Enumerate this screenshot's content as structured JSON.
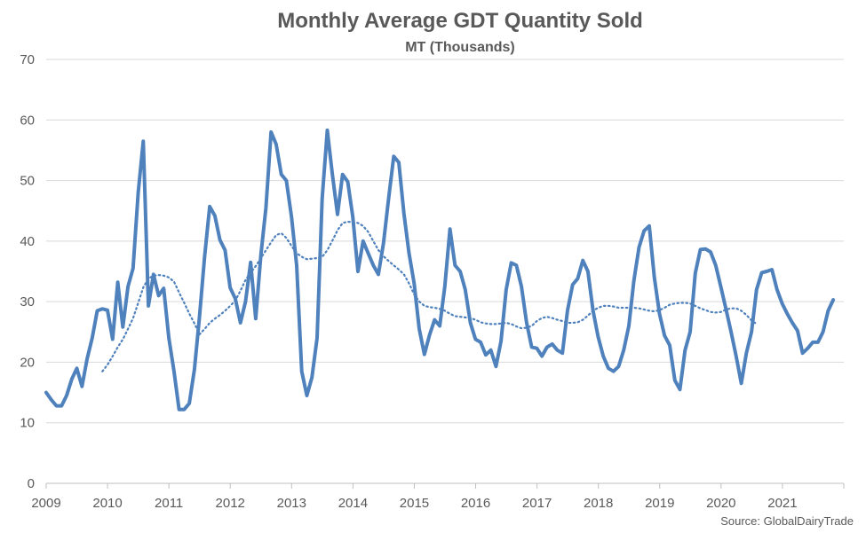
{
  "chart_data": {
    "type": "line",
    "title": "Monthly Average GDT Quantity Sold",
    "subtitle": "MT (Thousands)",
    "xlabel": "",
    "ylabel": "",
    "ylim": [
      0,
      70
    ],
    "y_ticks": [
      "0",
      "10",
      "20",
      "30",
      "40",
      "50",
      "60",
      "70"
    ],
    "x_ticks": [
      "2009",
      "2010",
      "2011",
      "2012",
      "2013",
      "2014",
      "2015",
      "2016",
      "2017",
      "2018",
      "2019",
      "2020",
      "2021"
    ],
    "grid": true,
    "legend": "none",
    "source": "Source: GlobalDairyTrade",
    "colors": {
      "series": "#4f81bd",
      "grid": "#d9d9d9",
      "text": "#595959"
    },
    "series": [
      {
        "style": "solid",
        "x_start": 2009.0,
        "x_step": 0.0833,
        "values": [
          15,
          13.8,
          12.8,
          12.8,
          14.5,
          17.2,
          19,
          16,
          20.5,
          24,
          28.5,
          28.8,
          28.6,
          23.8,
          33.2,
          25.8,
          32.5,
          35.5,
          48,
          56.5,
          29.3,
          34.5,
          31,
          32.2,
          24,
          18.5,
          12.2,
          12.2,
          13.2,
          18.8,
          27.5,
          37.5,
          45.7,
          44.2,
          40.2,
          38.5,
          32.3,
          30.5,
          26.5,
          30,
          36.5,
          27.2,
          37.7,
          45.5,
          58,
          56,
          51,
          50,
          44,
          36,
          18.5,
          14.5,
          17.5,
          24,
          47,
          58.3,
          51,
          44.4,
          51,
          49.8,
          44,
          35,
          40,
          38,
          36,
          34.5,
          39.7,
          47,
          54,
          53,
          44.5,
          38,
          33,
          25.5,
          21.3,
          24.5,
          27,
          26,
          32.5,
          42,
          36,
          35,
          32,
          26.5,
          23.8,
          23.3,
          21.2,
          22,
          19.3,
          23.5,
          32,
          36.4,
          36,
          32.5,
          26.5,
          22.5,
          22.3,
          21,
          22.5,
          23,
          22,
          21.5,
          28.5,
          32.8,
          33.8,
          36.8,
          35,
          28.5,
          24.2,
          21,
          19,
          18.5,
          19.3,
          22,
          26,
          33.5,
          39,
          41.7,
          42.5,
          34,
          28,
          24.4,
          22.8,
          17,
          15.5,
          22,
          25,
          34.7,
          38.6,
          38.7,
          38.2,
          36,
          32.5,
          28.8,
          25,
          21,
          16.5,
          21.5,
          25,
          32,
          34.8,
          35,
          35.3,
          32,
          29.7,
          28,
          26.5,
          25.2,
          21.5,
          22.3,
          23.3,
          23.3,
          25,
          28.5,
          30.3
        ]
      },
      {
        "style": "dotted",
        "x_start": 2009.917,
        "x_step": 0.0833,
        "values": [
          18.5,
          19.6,
          21,
          22.5,
          23.8,
          25.5,
          27.3,
          29.8,
          32.4,
          33.8,
          34.3,
          34.4,
          34.3,
          34,
          33.3,
          31.5,
          29.8,
          28,
          26.4,
          24.6,
          25.5,
          26.5,
          27.2,
          27.8,
          28.5,
          29.3,
          30.2,
          31.8,
          33.6,
          34.8,
          35.9,
          37.2,
          38.5,
          39.8,
          41,
          41.3,
          40.5,
          39.2,
          38,
          37.4,
          37,
          37.1,
          37.2,
          37.4,
          38.5,
          40.1,
          41.8,
          43,
          43.2,
          43.1,
          43,
          42.5,
          41.5,
          40,
          38.5,
          37.5,
          36.7,
          36,
          35.3,
          34.5,
          33,
          31.2,
          30,
          29.3,
          29.1,
          29,
          28.8,
          28.5,
          28,
          27.6,
          27.5,
          27.4,
          27.3,
          27,
          26.6,
          26.4,
          26.3,
          26.3,
          26.4,
          26.5,
          26.3,
          25.9,
          25.6,
          25.7,
          26,
          26.8,
          27.3,
          27.5,
          27.3,
          27,
          26.8,
          26.5,
          26.5,
          26.6,
          27,
          27.7,
          28.5,
          29,
          29.3,
          29.3,
          29.2,
          29,
          29,
          29,
          29,
          28.9,
          28.7,
          28.5,
          28.4,
          28.6,
          29,
          29.5,
          29.7,
          29.8,
          29.8,
          29.7,
          29.3,
          28.9,
          28.6,
          28.3,
          28.2,
          28.3,
          28.7,
          28.9,
          28.9,
          28.5,
          27.8,
          26.9,
          26.3
        ]
      }
    ]
  }
}
